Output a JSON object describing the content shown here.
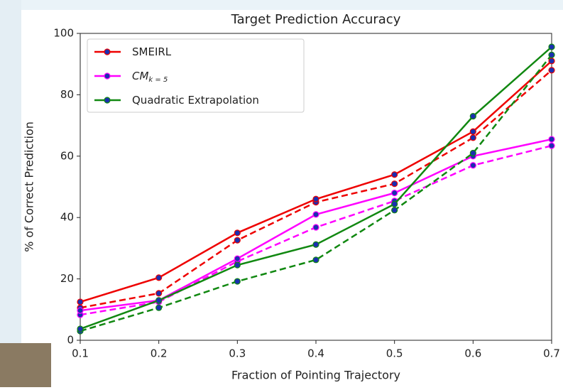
{
  "chart_data": {
    "type": "line",
    "title": "Target Prediction Accuracy",
    "x_label": "Fraction of Pointing Trajectory",
    "y_label": "% of Correct Prediction",
    "x": [
      0.1,
      0.2,
      0.3,
      0.4,
      0.5,
      0.6,
      0.7
    ],
    "xlim": [
      0.1,
      0.7
    ],
    "xticks": [
      0.1,
      0.2,
      0.3,
      0.4,
      0.5,
      0.6,
      0.7
    ],
    "ylim": [
      0,
      100
    ],
    "yticks": [
      0,
      20,
      40,
      60,
      80,
      100
    ],
    "grid": false,
    "legend": "upper left",
    "marker_color": "#1a2fb0",
    "series": [
      {
        "name": "SMEIRL",
        "color": "#ee0000",
        "values": [
          12.5,
          20.4,
          35,
          46,
          54,
          68,
          91
        ],
        "dashed_values": [
          10.6,
          15.3,
          32.6,
          45,
          51,
          66,
          88
        ]
      },
      {
        "name": "CM",
        "name_subscript": "k = 5",
        "color": "#ff00ff",
        "values": [
          9.7,
          13,
          26.6,
          41,
          48,
          60,
          65.5
        ],
        "dashed_values": [
          8.3,
          12.5,
          25.7,
          36.8,
          45.4,
          57,
          63.4
        ]
      },
      {
        "name": "Quadratic Extrapolation",
        "color": "#118811",
        "values": [
          3.7,
          13,
          24.5,
          31.2,
          44.4,
          73,
          95.6
        ],
        "dashed_values": [
          3,
          10.6,
          19.2,
          26.2,
          42.4,
          61,
          93
        ]
      }
    ]
  }
}
